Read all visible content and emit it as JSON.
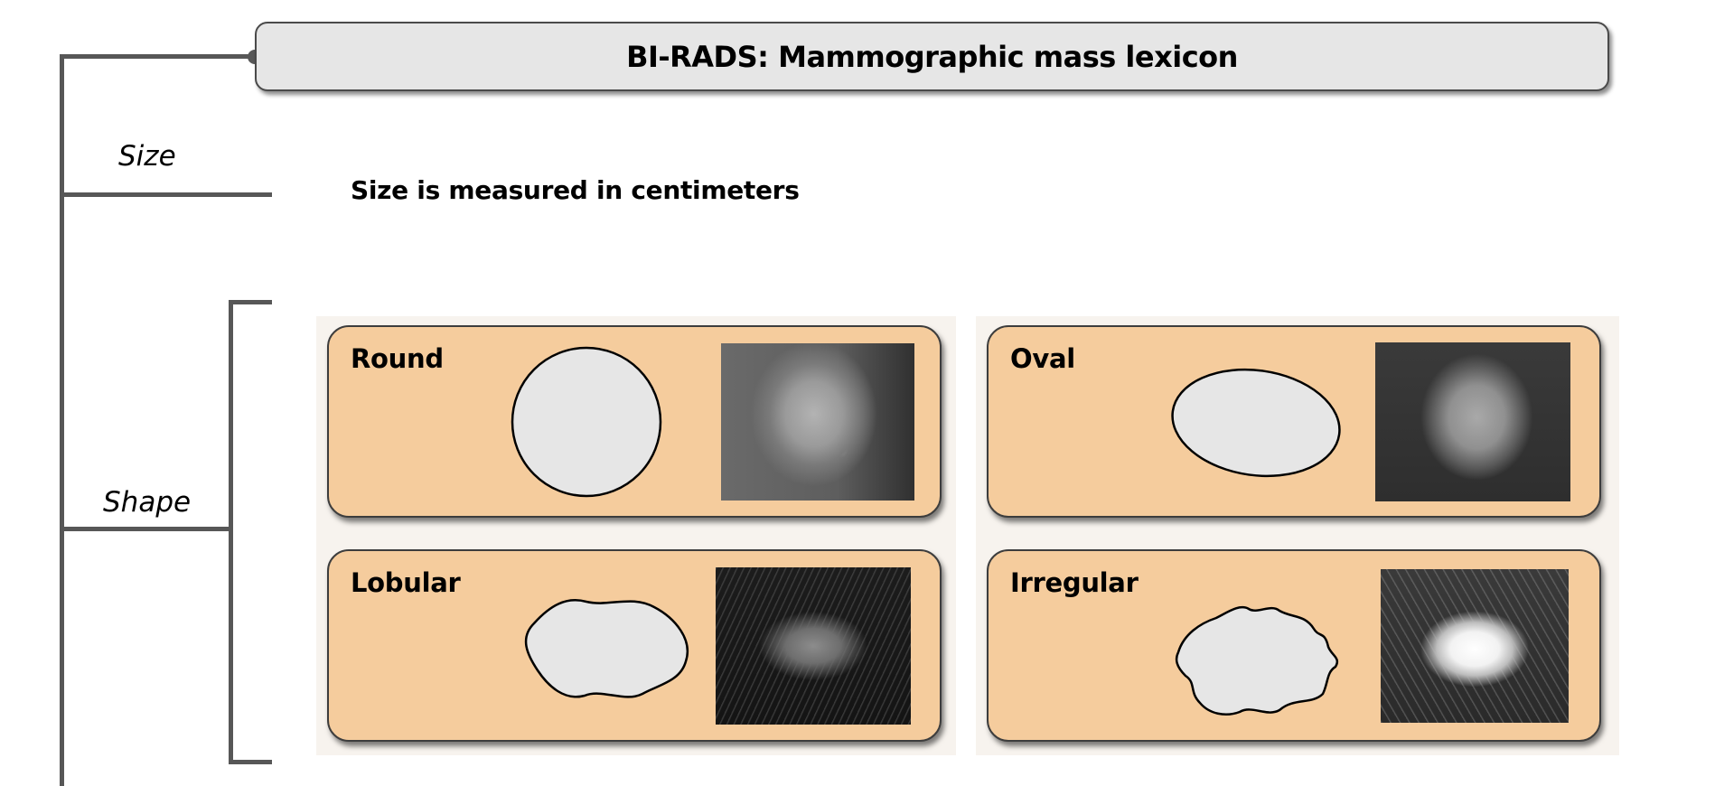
{
  "title": "BI-RADS: Mammographic mass lexicon",
  "branches": {
    "size": {
      "label": "Size",
      "description": "Size is measured in centimeters"
    },
    "shape": {
      "label": "Shape"
    }
  },
  "shapes": [
    {
      "label": "Round"
    },
    {
      "label": "Oval"
    },
    {
      "label": "Lobular"
    },
    {
      "label": "Irregular"
    }
  ],
  "colors": {
    "card_fill": "#f5cc9d",
    "shape_fill": "#e6e6e6",
    "title_fill": "#e6e6e6",
    "connector": "#575757"
  }
}
